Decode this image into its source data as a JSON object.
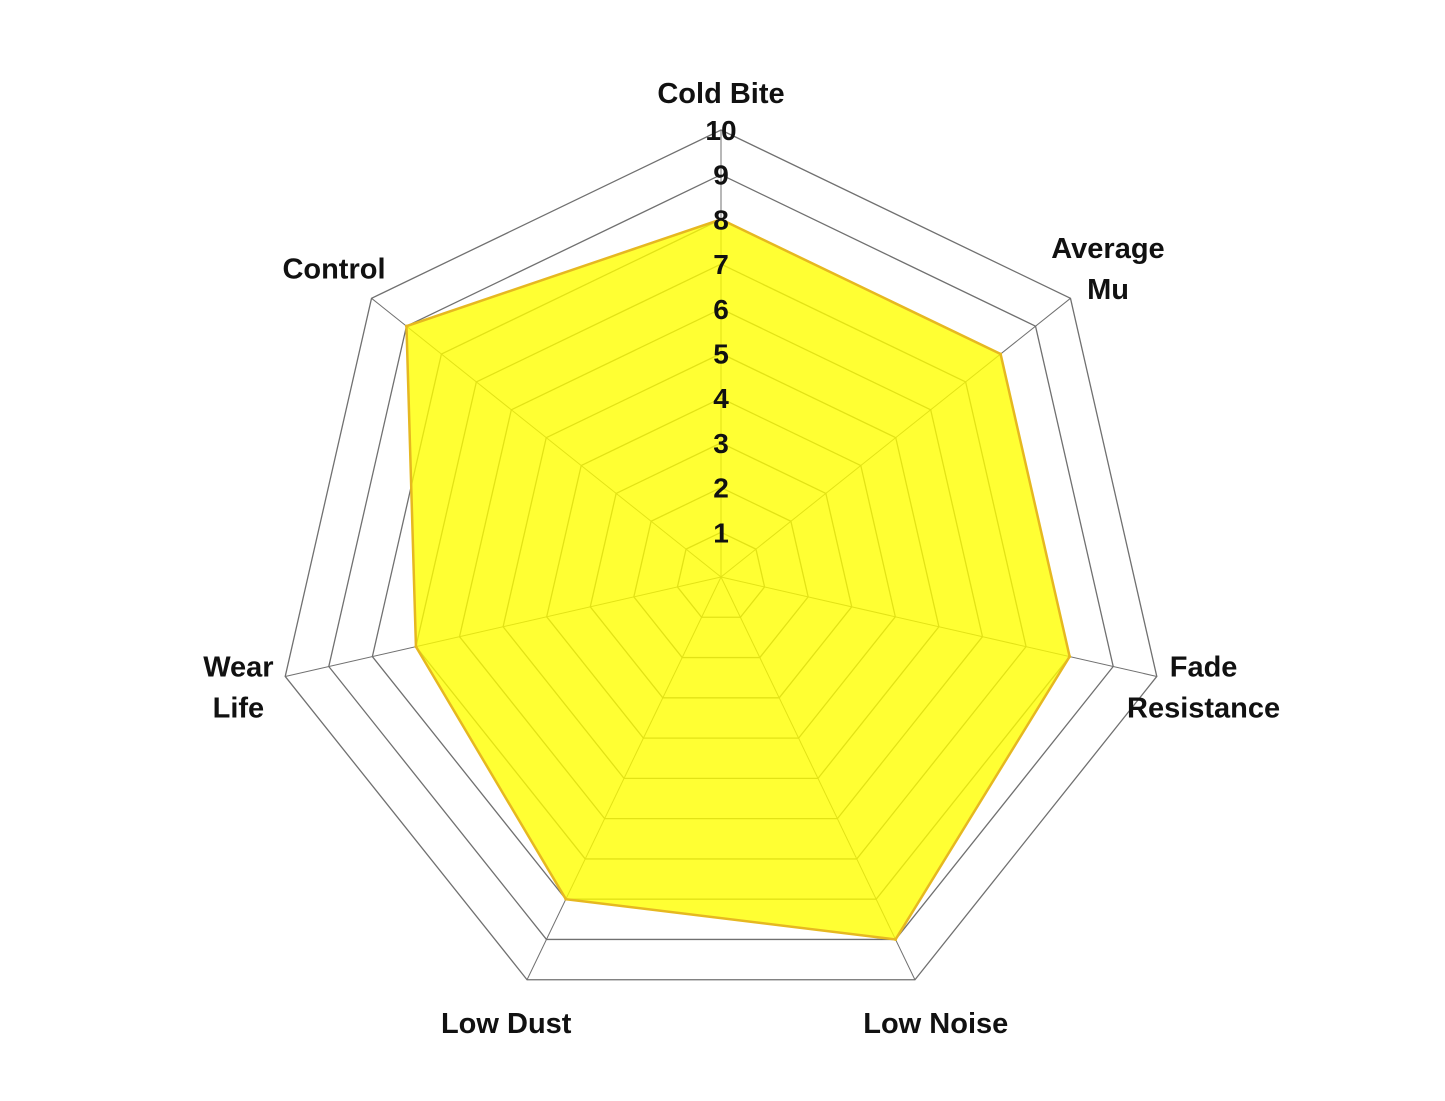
{
  "chart_data": {
    "type": "radar",
    "title": "",
    "categories": [
      [
        "Cold Bite"
      ],
      [
        "Average",
        "Mu"
      ],
      [
        "Fade",
        "Resistance"
      ],
      [
        "Low Noise"
      ],
      [
        "Low Dust"
      ],
      [
        "Wear",
        "Life"
      ],
      [
        "Control"
      ]
    ],
    "series": [
      {
        "values": [
          8,
          8,
          8,
          9,
          8,
          7,
          9
        ],
        "fill": "#ffff00",
        "stroke": "#e6b820"
      }
    ],
    "range": [
      0,
      10
    ],
    "ticks": [
      "1",
      "2",
      "3",
      "4",
      "5",
      "6",
      "7",
      "8",
      "9",
      "10"
    ],
    "grid": true,
    "grid_color": "#707070"
  }
}
